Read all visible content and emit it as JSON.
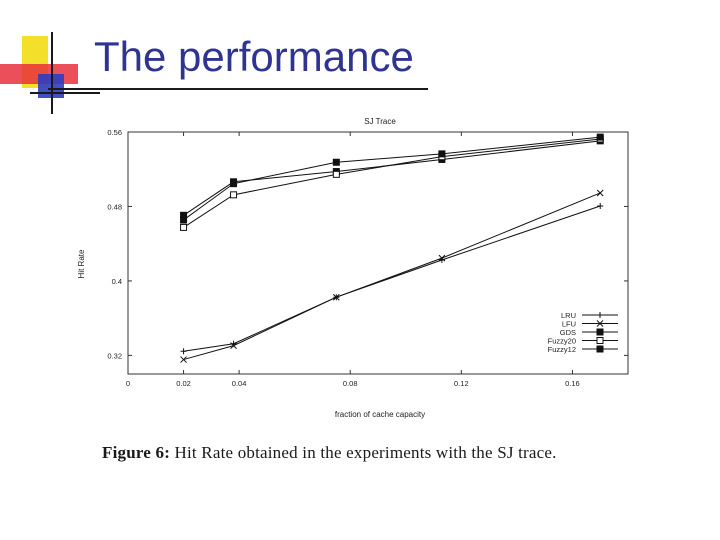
{
  "slide": {
    "title": "The performance",
    "caption_label": "Figure 6:",
    "caption_text": "Hit Rate obtained in the experiments with the SJ trace."
  },
  "colors": {
    "title": "#2f3490",
    "logo_yellow": "#f3e02a",
    "logo_red": "#e8303c",
    "logo_blue": "#2e3dbf"
  },
  "chart_data": {
    "type": "line",
    "title": "SJ Trace",
    "xlabel": "fraction of cache capacity",
    "ylabel": "Hit Rate",
    "xlim": [
      0,
      0.18
    ],
    "ylim": [
      0.3,
      0.56
    ],
    "xticks": [
      0,
      0.02,
      0.04,
      0.08,
      0.12,
      0.16
    ],
    "xtick_labels": [
      "0",
      "0.02",
      "0.04",
      "0.08",
      "0.12",
      "0.16"
    ],
    "yticks": [
      0.32,
      0.4,
      0.48,
      0.56
    ],
    "ytick_labels": [
      "0.32",
      "0.4",
      "0.48",
      "0.56"
    ],
    "legend_position": "bottom-right",
    "x": [
      0.02,
      0.038,
      0.075,
      0.113,
      0.17
    ],
    "series": [
      {
        "name": "LRU",
        "marker": "plus",
        "values": [
          0.3245,
          0.3325,
          0.3825,
          0.4225,
          0.4805
        ]
      },
      {
        "name": "LFU",
        "marker": "cross",
        "values": [
          0.3155,
          0.3305,
          0.3825,
          0.4245,
          0.4945
        ]
      },
      {
        "name": "GDS",
        "marker": "square",
        "values": [
          0.4705,
          0.5065,
          0.5175,
          0.5305,
          0.5505
        ]
      },
      {
        "name": "Fuzzy20",
        "marker": "open-square",
        "values": [
          0.4575,
          0.4925,
          0.5145,
          0.5335,
          0.5525
        ]
      },
      {
        "name": "Fuzzy12",
        "marker": "filled-square",
        "values": [
          0.4655,
          0.5045,
          0.5275,
          0.5365,
          0.5545
        ]
      }
    ]
  }
}
